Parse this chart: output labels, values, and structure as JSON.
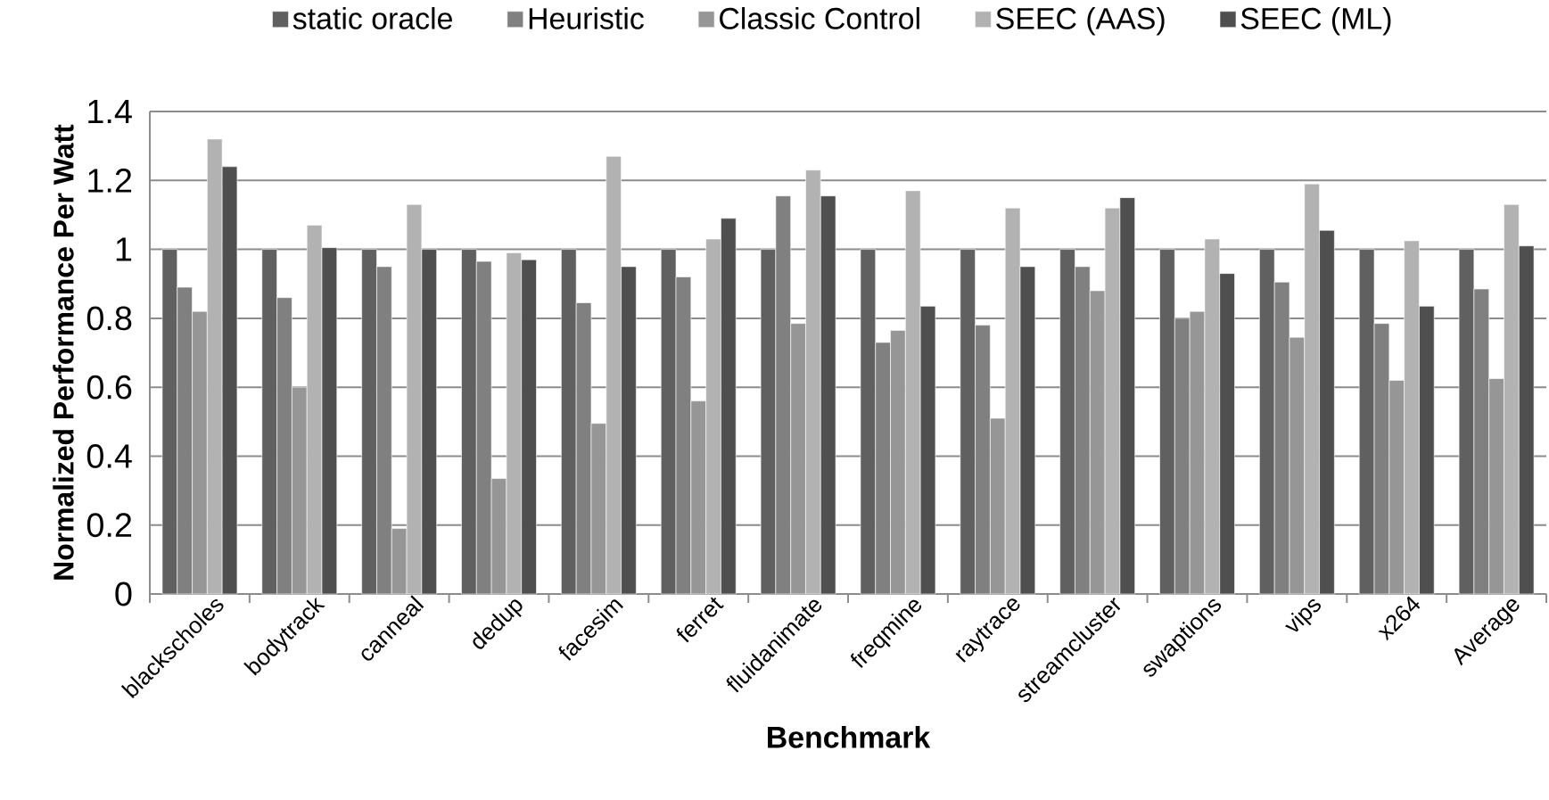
{
  "chart_data": {
    "type": "bar",
    "xlabel": "Benchmark",
    "ylabel": "Normalized Performance Per Watt",
    "categories": [
      "blackscholes",
      "bodytrack",
      "canneal",
      "dedup",
      "facesim",
      "ferret",
      "fluidanimate",
      "freqmine",
      "raytrace",
      "streamcluster",
      "swaptions",
      "vips",
      "x264",
      "Average"
    ],
    "series": [
      {
        "name": "static oracle",
        "color": "#606060",
        "values": [
          1,
          1,
          1,
          1,
          1,
          1,
          1,
          1,
          1,
          1,
          1,
          1,
          1,
          1
        ]
      },
      {
        "name": "Heuristic",
        "color": "#808080",
        "values": [
          0.89,
          0.86,
          0.95,
          0.965,
          0.845,
          0.92,
          1.155,
          0.73,
          0.78,
          0.95,
          0.8,
          0.905,
          0.785,
          0.885
        ]
      },
      {
        "name": "Classic Control",
        "color": "#969696",
        "values": [
          0.82,
          0.6,
          0.19,
          0.335,
          0.495,
          0.56,
          0.785,
          0.765,
          0.51,
          0.88,
          0.82,
          0.745,
          0.62,
          0.625
        ]
      },
      {
        "name": "SEEC (AAS)",
        "color": "#b2b2b2",
        "values": [
          1.32,
          1.07,
          1.13,
          0.99,
          1.27,
          1.03,
          1.23,
          1.17,
          1.12,
          1.12,
          1.03,
          1.19,
          1.025,
          1.13
        ]
      },
      {
        "name": "SEEC (ML)",
        "color": "#4f4f4f",
        "values": [
          1.24,
          1.005,
          1.0,
          0.97,
          0.95,
          1.09,
          1.155,
          0.835,
          0.95,
          1.15,
          0.93,
          1.055,
          0.835,
          1.01
        ]
      }
    ],
    "ylim": [
      0,
      1.4
    ],
    "yticks": [
      0,
      0.2,
      0.4,
      0.6,
      0.8,
      1,
      1.2,
      1.4
    ],
    "grid": "y",
    "legend": "top"
  }
}
